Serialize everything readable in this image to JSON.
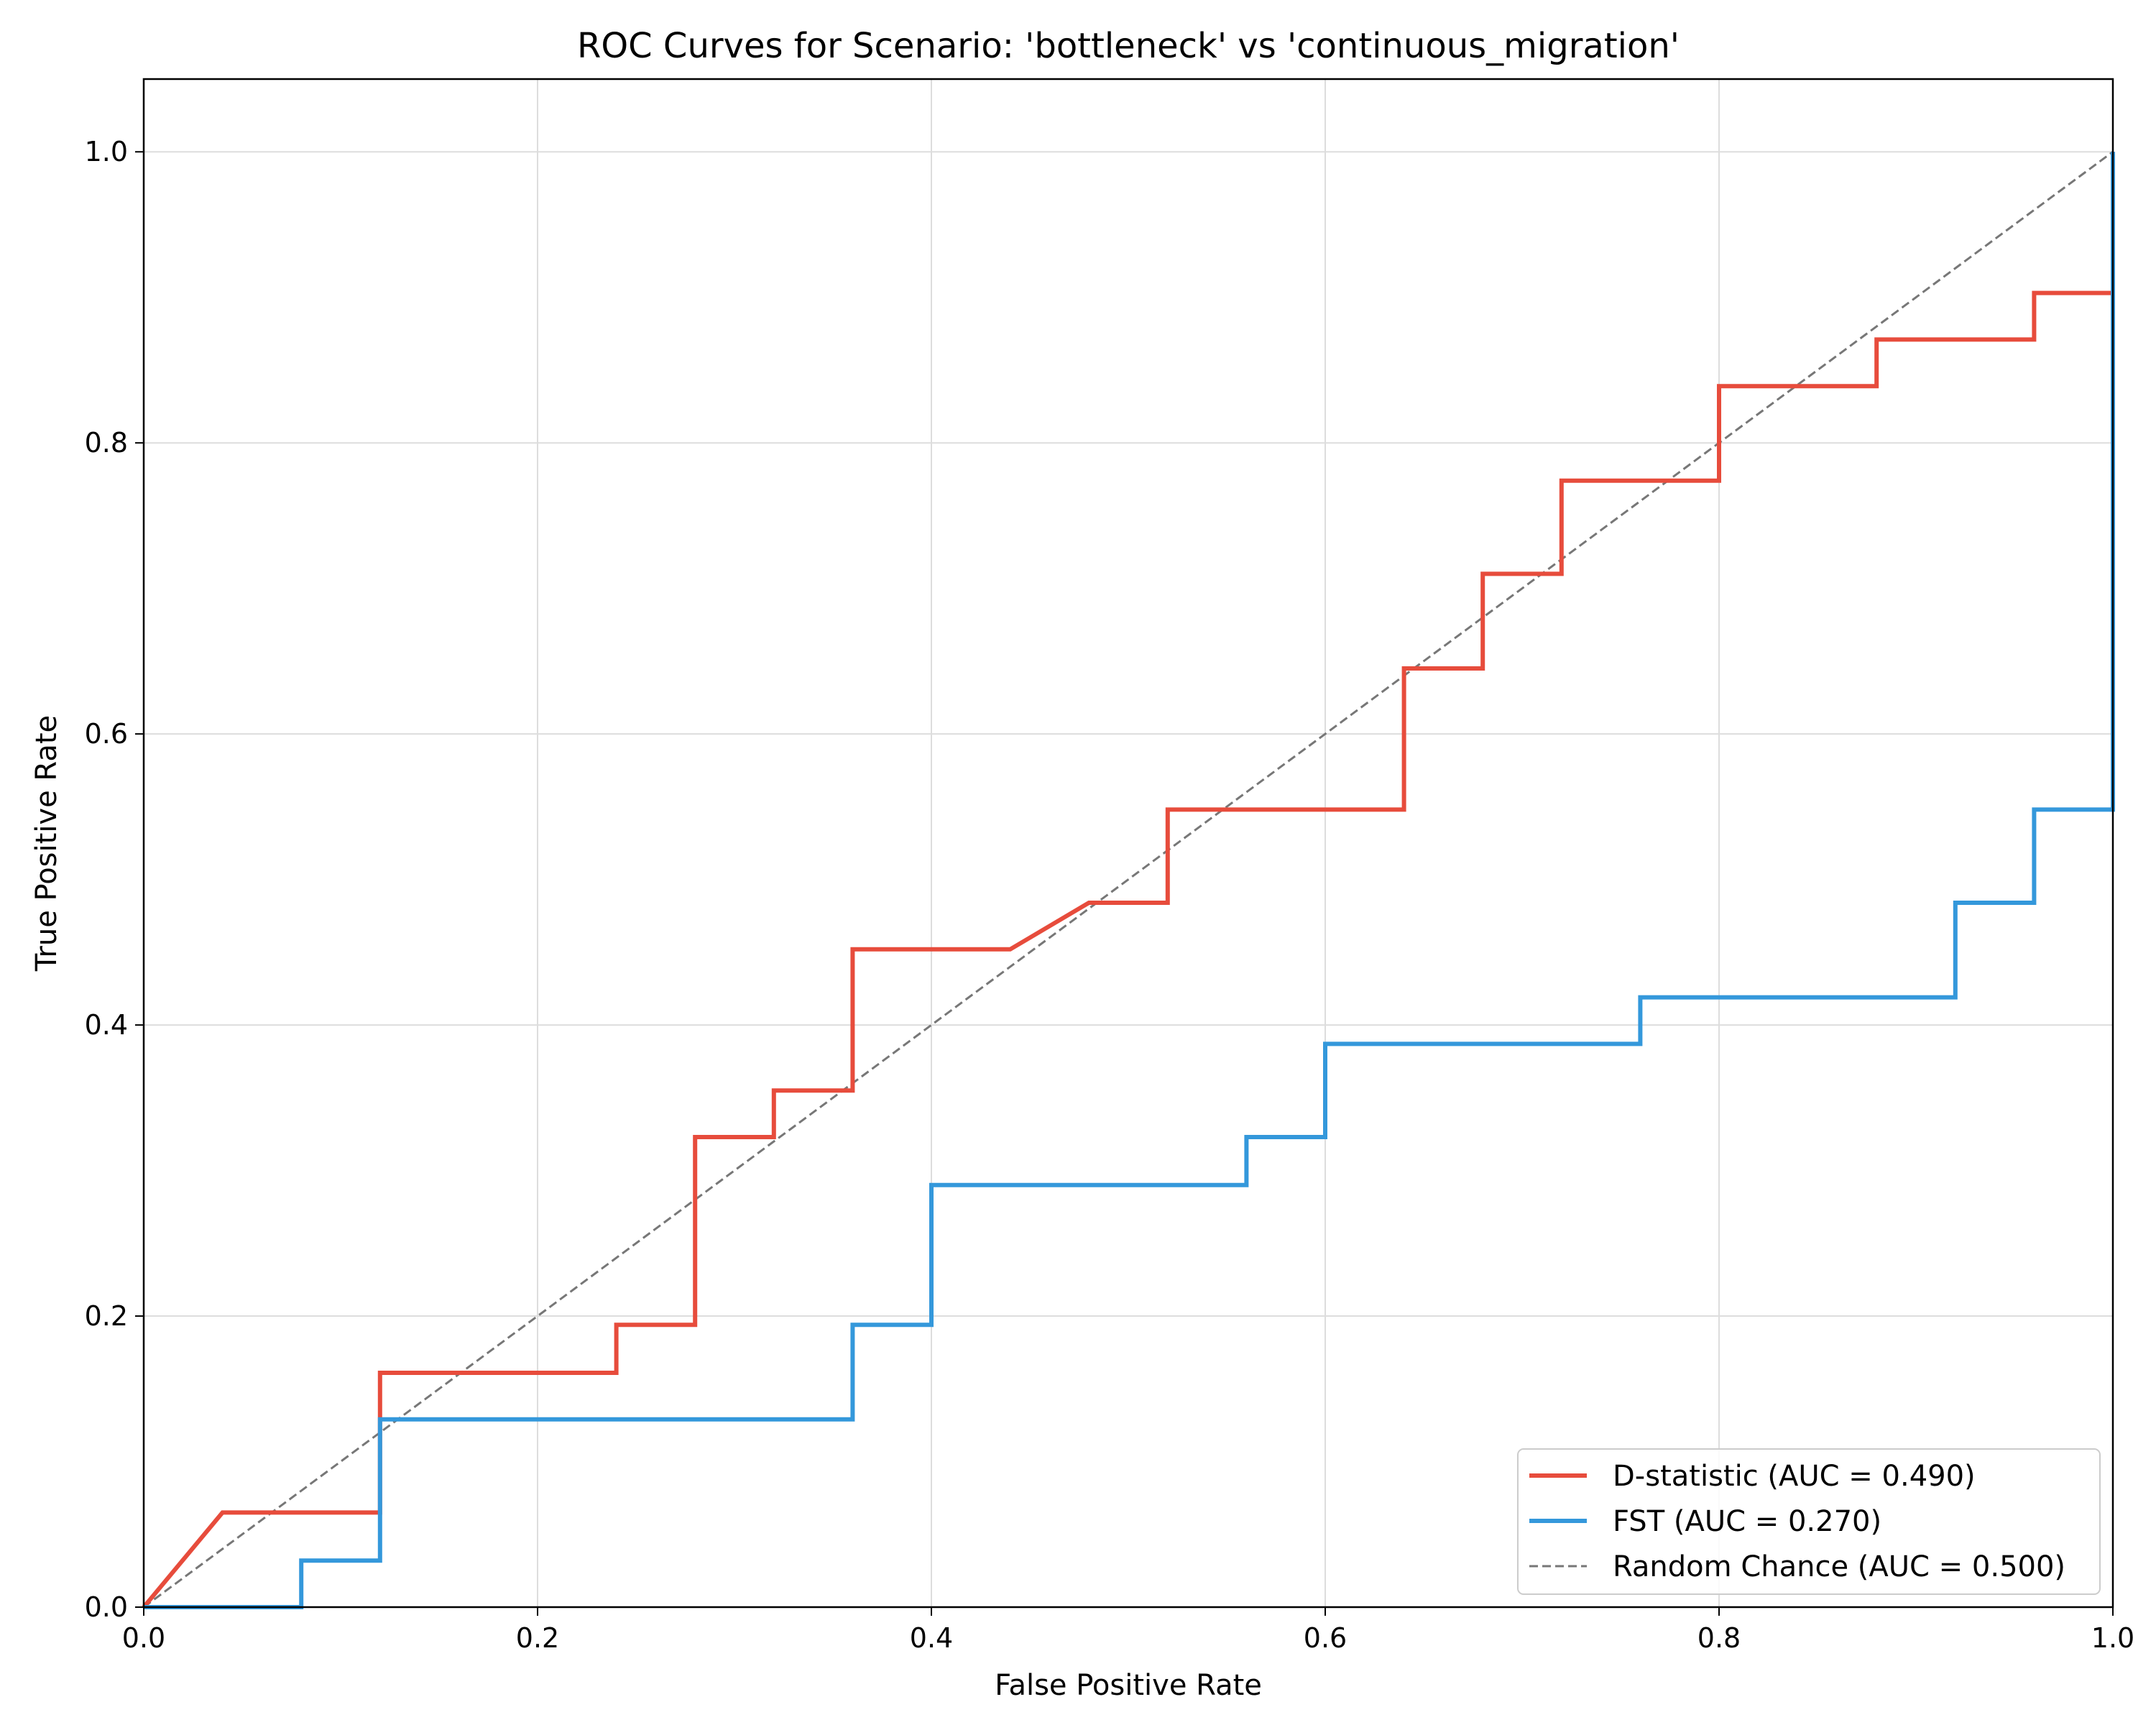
{
  "chart_data": {
    "type": "line",
    "title": "ROC Curves for Scenario: 'bottleneck' vs 'continuous_migration'",
    "xlabel": "False Positive Rate",
    "ylabel": "True Positive Rate",
    "xlim": [
      0.0,
      1.0
    ],
    "ylim": [
      0.0,
      1.05
    ],
    "x_ticks": [
      "0.0",
      "0.2",
      "0.4",
      "0.6",
      "0.8",
      "1.0"
    ],
    "y_ticks": [
      "0.0",
      "0.2",
      "0.4",
      "0.6",
      "0.8",
      "1.0"
    ],
    "grid": true,
    "legend_position": "lower-right",
    "series": [
      {
        "name": "D-statistic (AUC = 0.490)",
        "color": "#e74c3c",
        "style": "solid",
        "x": [
          0.0,
          0.04,
          0.12,
          0.12,
          0.24,
          0.24,
          0.28,
          0.28,
          0.32,
          0.32,
          0.36,
          0.36,
          0.44,
          0.48,
          0.52,
          0.52,
          0.64,
          0.64,
          0.68,
          0.68,
          0.72,
          0.72,
          0.8,
          0.8,
          0.88,
          0.88,
          0.96,
          0.96,
          1.0,
          1.0
        ],
        "y": [
          0.0,
          0.065,
          0.065,
          0.161,
          0.161,
          0.194,
          0.194,
          0.323,
          0.323,
          0.355,
          0.355,
          0.452,
          0.452,
          0.484,
          0.484,
          0.548,
          0.548,
          0.645,
          0.645,
          0.71,
          0.71,
          0.774,
          0.774,
          0.839,
          0.839,
          0.871,
          0.871,
          0.903,
          0.903,
          1.0
        ]
      },
      {
        "name": "FST (AUC = 0.270)",
        "color": "#3498db",
        "style": "solid",
        "x": [
          0.0,
          0.08,
          0.08,
          0.12,
          0.12,
          0.36,
          0.36,
          0.4,
          0.4,
          0.56,
          0.56,
          0.6,
          0.6,
          0.76,
          0.76,
          0.92,
          0.92,
          0.96,
          0.96,
          1.0,
          1.0
        ],
        "y": [
          0.0,
          0.0,
          0.032,
          0.032,
          0.129,
          0.129,
          0.194,
          0.194,
          0.29,
          0.29,
          0.323,
          0.323,
          0.387,
          0.387,
          0.419,
          0.419,
          0.484,
          0.484,
          0.548,
          0.548,
          1.0
        ]
      },
      {
        "name": "Random Chance (AUC = 0.500)",
        "color": "#777777",
        "style": "dashed",
        "x": [
          0.0,
          1.0
        ],
        "y": [
          0.0,
          1.0
        ]
      }
    ]
  }
}
